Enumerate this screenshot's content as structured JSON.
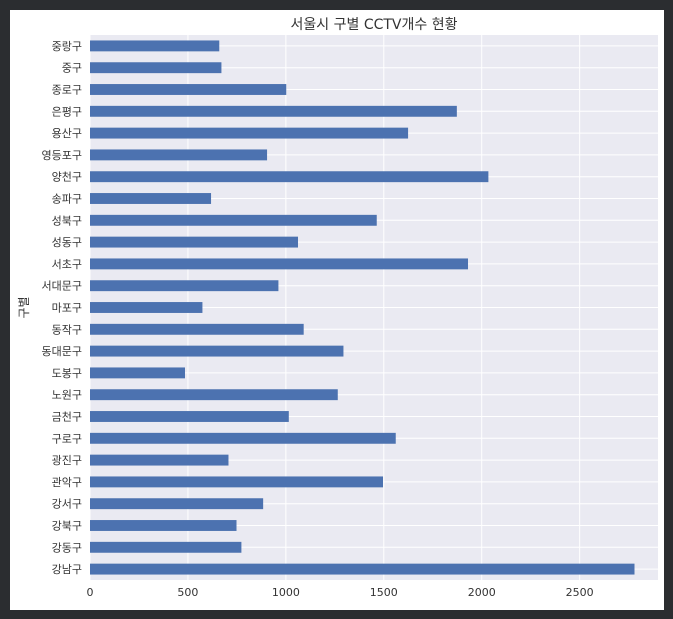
{
  "chart_data": {
    "type": "bar",
    "orientation": "horizontal",
    "title": "서울시 구별 CCTV개수 현황",
    "xlabel": "",
    "ylabel": "구별",
    "xlim": [
      0,
      2900
    ],
    "xticks": [
      0,
      500,
      1000,
      1500,
      2000,
      2500
    ],
    "grid": true,
    "bar_color": "#4c72b0",
    "plot_background": "#eaeaf2",
    "categories": [
      "중랑구",
      "중구",
      "종로구",
      "은평구",
      "용산구",
      "영등포구",
      "양천구",
      "송파구",
      "성북구",
      "성동구",
      "서초구",
      "서대문구",
      "마포구",
      "동작구",
      "동대문구",
      "도봉구",
      "노원구",
      "금천구",
      "구로구",
      "광진구",
      "관악구",
      "강서구",
      "강북구",
      "강동구",
      "강남구"
    ],
    "values": [
      660,
      671,
      1002,
      1873,
      1624,
      904,
      2034,
      618,
      1464,
      1062,
      1930,
      962,
      574,
      1091,
      1294,
      485,
      1265,
      1015,
      1561,
      707,
      1496,
      884,
      748,
      773,
      2780
    ]
  }
}
